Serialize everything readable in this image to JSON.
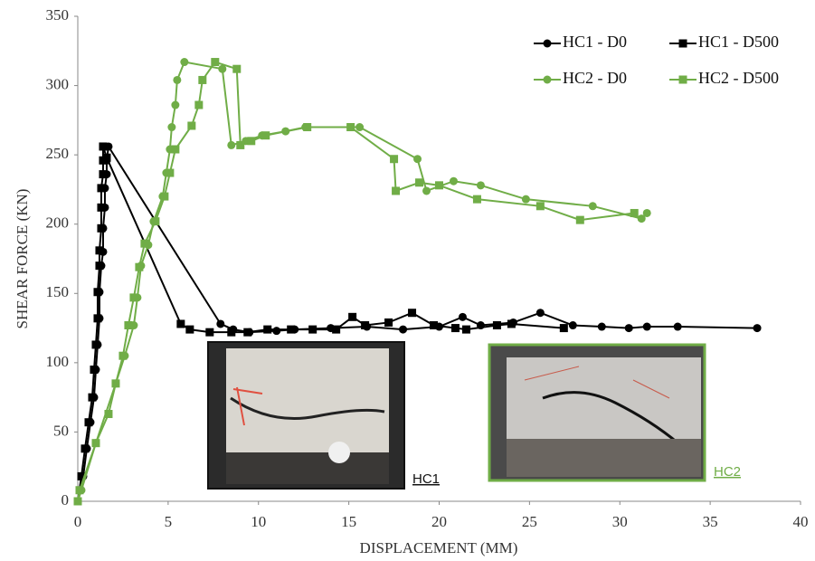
{
  "chart_data": {
    "type": "line",
    "xlabel": "DISPLACEMENT (MM)",
    "ylabel": "SHEAR FORCE (KN)",
    "xlim": [
      0,
      40
    ],
    "xticks": [
      0,
      5,
      10,
      15,
      20,
      25,
      30,
      35,
      40
    ],
    "ylim": [
      0,
      350
    ],
    "yticks": [
      0,
      50,
      100,
      150,
      200,
      250,
      300,
      350
    ],
    "grid": false,
    "legend": "top-right",
    "series": [
      {
        "name": "HC1 - D0",
        "color": "#000000",
        "marker": "circle",
        "x": [
          0,
          0.3,
          0.5,
          0.7,
          0.9,
          1.0,
          1.1,
          1.2,
          1.2,
          1.3,
          1.4,
          1.4,
          1.5,
          1.5,
          1.6,
          1.6,
          1.7,
          7.9,
          8.6,
          9.5,
          11,
          12,
          14,
          16,
          18,
          20,
          21.3,
          22.3,
          24.1,
          25.6,
          27.4,
          29,
          30.5,
          31.5,
          33.2,
          37.6
        ],
        "values": [
          0,
          18,
          38,
          57,
          75,
          95,
          113,
          132,
          151,
          170,
          180,
          197,
          212,
          226,
          236,
          246,
          256,
          128,
          124,
          122,
          123,
          124,
          125,
          126,
          124,
          126,
          133,
          127,
          129,
          136,
          127,
          126,
          125,
          126,
          126,
          125
        ]
      },
      {
        "name": "HC1 - D500",
        "color": "#000000",
        "marker": "square",
        "x": [
          0,
          0.2,
          0.4,
          0.6,
          0.8,
          0.9,
          1.0,
          1.1,
          1.1,
          1.2,
          1.2,
          1.3,
          1.3,
          1.3,
          1.4,
          1.4,
          1.4,
          1.6,
          5.7,
          6.2,
          7.3,
          8.5,
          9.4,
          10.5,
          11.8,
          13.0,
          14.3,
          15.2,
          15.9,
          17.2,
          18.5,
          19.7,
          20.9,
          21.5,
          23.2,
          24.0,
          26.9
        ],
        "values": [
          0,
          18,
          38,
          57,
          75,
          95,
          113,
          132,
          151,
          170,
          181,
          197,
          212,
          226,
          236,
          246,
          256,
          248,
          128,
          124,
          122,
          122,
          122,
          124,
          124,
          124,
          124,
          133,
          127,
          129,
          136,
          127,
          125,
          124,
          127,
          128,
          125
        ]
      },
      {
        "name": "HC2 - D0",
        "color": "#70ad47",
        "marker": "circle",
        "x": [
          0,
          0.2,
          1.0,
          2.1,
          2.6,
          3.1,
          3.3,
          3.5,
          3.9,
          4.2,
          4.7,
          4.9,
          5.1,
          5.2,
          5.4,
          5.5,
          5.9,
          8.0,
          8.5,
          9.3,
          10.2,
          11.5,
          12.6,
          15.6,
          18.8,
          19.3,
          20.8,
          22.3,
          24.8,
          28.5,
          31.2,
          31.5
        ],
        "values": [
          0,
          8,
          42,
          85,
          105,
          127,
          147,
          170,
          185,
          202,
          220,
          237,
          254,
          270,
          286,
          304,
          317,
          312,
          257,
          260,
          264,
          267,
          270,
          270,
          247,
          224,
          231,
          228,
          218,
          213,
          204,
          208
        ]
      },
      {
        "name": "HC2 - D500",
        "color": "#70ad47",
        "marker": "square",
        "x": [
          0,
          0.1,
          1.0,
          1.7,
          2.1,
          2.5,
          2.8,
          3.1,
          3.4,
          3.7,
          4.3,
          4.8,
          5.1,
          5.4,
          6.3,
          6.7,
          6.9,
          7.6,
          8.8,
          9.0,
          9.6,
          10.4,
          12.7,
          15.1,
          17.5,
          17.6,
          18.9,
          20.0,
          22.1,
          25.6,
          27.8,
          30.8
        ],
        "values": [
          0,
          8,
          42,
          63,
          85,
          105,
          127,
          147,
          169,
          186,
          202,
          220,
          237,
          254,
          271,
          286,
          304,
          317,
          312,
          257,
          260,
          264,
          270,
          270,
          247,
          224,
          230,
          228,
          218,
          213,
          203,
          208
        ]
      }
    ],
    "insets": [
      {
        "label": "HC1",
        "color": "#111111"
      },
      {
        "label": "HC2",
        "color": "#70ad47"
      }
    ]
  }
}
